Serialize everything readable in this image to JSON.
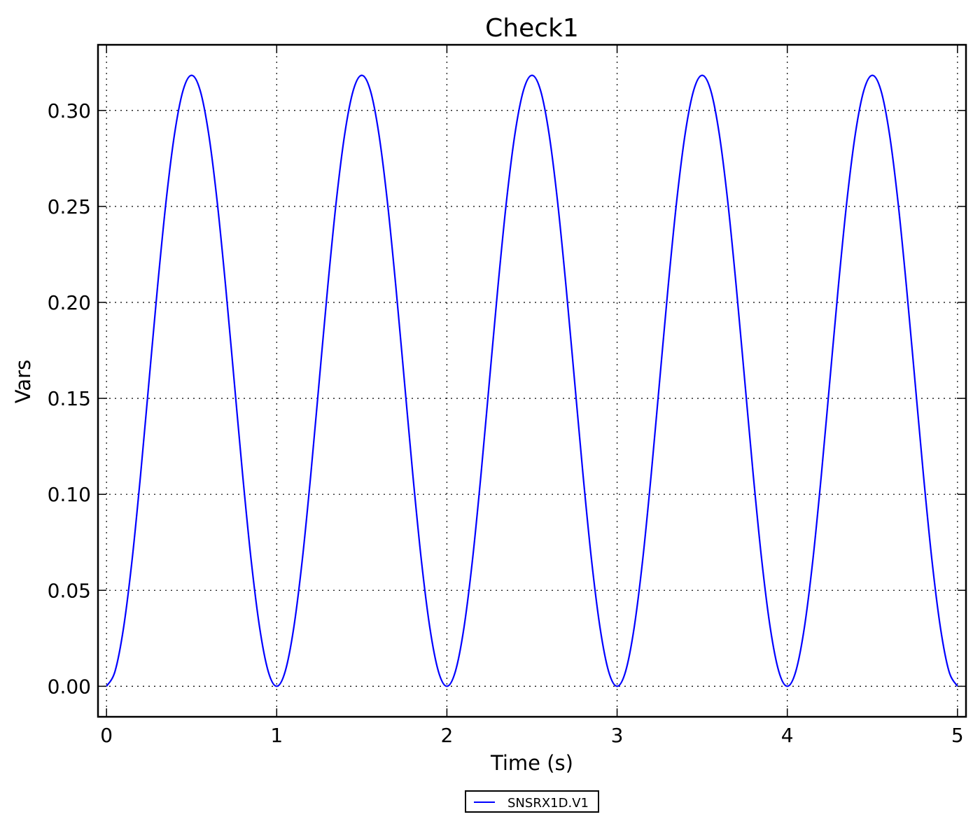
{
  "chart_data": {
    "type": "line",
    "title": "Check1",
    "xlabel": "Time (s)",
    "ylabel": "Vars",
    "xlim": [
      -0.05,
      5.05
    ],
    "ylim": [
      -0.0159,
      0.3342
    ],
    "xticks": [
      "0",
      "1",
      "2",
      "3",
      "4",
      "5"
    ],
    "xtick_values": [
      0,
      1,
      2,
      3,
      4,
      5
    ],
    "yticks": [
      "0.00",
      "0.05",
      "0.10",
      "0.15",
      "0.20",
      "0.25",
      "0.30"
    ],
    "ytick_values": [
      0,
      0.05,
      0.1,
      0.15,
      0.2,
      0.25,
      0.3
    ],
    "grid": true,
    "legend_position": "below",
    "series": [
      {
        "name": "SNSRX1D.V1",
        "color": "#0000ff",
        "x_step": 0.05,
        "x_start": 0,
        "y": [
          0,
          0.0078,
          0.0304,
          0.0656,
          0.11,
          0.1592,
          0.2083,
          0.2527,
          0.2879,
          0.3105,
          0.3183,
          0.3105,
          0.2879,
          0.2527,
          0.2083,
          0.1592,
          0.11,
          0.0656,
          0.0304,
          0.0078,
          0,
          0.0078,
          0.0304,
          0.0656,
          0.11,
          0.1592,
          0.2083,
          0.2527,
          0.2879,
          0.3105,
          0.3183,
          0.3105,
          0.2879,
          0.2527,
          0.2083,
          0.1592,
          0.11,
          0.0656,
          0.0304,
          0.0078,
          0,
          0.0078,
          0.0304,
          0.0656,
          0.11,
          0.1592,
          0.2083,
          0.2527,
          0.2879,
          0.3105,
          0.3183,
          0.3105,
          0.2879,
          0.2527,
          0.2083,
          0.1592,
          0.11,
          0.0656,
          0.0304,
          0.0078,
          0,
          0.0078,
          0.0304,
          0.0656,
          0.11,
          0.1592,
          0.2083,
          0.2527,
          0.2879,
          0.3105,
          0.3183,
          0.3105,
          0.2879,
          0.2527,
          0.2083,
          0.1592,
          0.11,
          0.0656,
          0.0304,
          0.0078,
          0,
          0.0078,
          0.0304,
          0.0656,
          0.11,
          0.1592,
          0.2083,
          0.2527,
          0.2879,
          0.3105,
          0.3183,
          0.3105,
          0.2879,
          0.2527,
          0.2083,
          0.1592,
          0.11,
          0.0656,
          0.0304,
          0.0078,
          0
        ]
      }
    ]
  }
}
